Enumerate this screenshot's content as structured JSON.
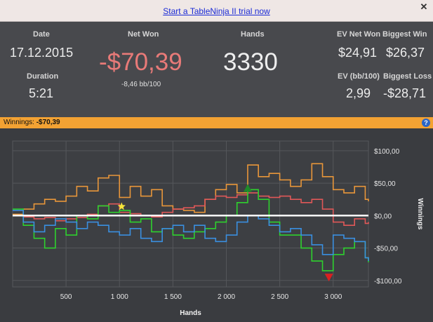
{
  "topbar": {
    "trial_link": "Start a TableNinja II trial now"
  },
  "stats": {
    "date_label": "Date",
    "date_value": "17.12.2015",
    "duration_label": "Duration",
    "duration_value": "5:21",
    "netwon_label": "Net Won",
    "netwon_value": "-$70,39",
    "netwon_sub": "-8,46 bb/100",
    "hands_label": "Hands",
    "hands_value": "3330",
    "evnet_label": "EV Net Won",
    "evnet_value": "$24,91",
    "biggestwin_label": "Biggest Win",
    "biggestwin_value": "$26,37",
    "evbb_label": "EV (bb/100)",
    "evbb_value": "2,99",
    "biggestloss_label": "Biggest Loss",
    "biggestloss_value": "-$28,71"
  },
  "winnings_bar": {
    "label": "Winnings:",
    "value": "-$70,39"
  },
  "chart_data": {
    "type": "line",
    "xlabel": "Hands",
    "ylabel": "Winnings",
    "xlim": [
      0,
      3330
    ],
    "ylim": [
      -110,
      115
    ],
    "x_ticks": [
      500,
      1000,
      1500,
      2000,
      2500,
      3000
    ],
    "x_tick_labels": [
      "500",
      "1 000",
      "1 500",
      "2 000",
      "2 500",
      "3 000"
    ],
    "y_ticks": [
      100,
      50,
      0,
      -50,
      -100
    ],
    "y_tick_labels": [
      "$100,00",
      "$50,00",
      "$0,00",
      "-$50,00",
      "-$100,00"
    ],
    "grid": true,
    "colors": {
      "orange": "#e8963a",
      "red": "#e05858",
      "green": "#2ed12e",
      "blue": "#3a8fe0",
      "zero": "#ffffff"
    },
    "series": [
      {
        "color": "orange",
        "x": [
          0,
          100,
          200,
          300,
          400,
          500,
          600,
          700,
          800,
          900,
          1000,
          1100,
          1200,
          1300,
          1400,
          1500,
          1600,
          1700,
          1800,
          1900,
          2000,
          2100,
          2200,
          2300,
          2400,
          2500,
          2600,
          2700,
          2800,
          2900,
          3000,
          3100,
          3200,
          3300,
          3330
        ],
        "y": [
          2,
          10,
          18,
          25,
          22,
          30,
          45,
          38,
          58,
          62,
          28,
          45,
          30,
          40,
          15,
          10,
          8,
          5,
          25,
          40,
          48,
          35,
          78,
          60,
          65,
          55,
          45,
          55,
          80,
          60,
          40,
          35,
          45,
          25,
          22
        ]
      },
      {
        "color": "red",
        "x": [
          0,
          100,
          200,
          300,
          400,
          500,
          600,
          700,
          800,
          900,
          1000,
          1100,
          1200,
          1300,
          1400,
          1500,
          1600,
          1700,
          1800,
          1900,
          2000,
          2100,
          2200,
          2300,
          2400,
          2500,
          2600,
          2700,
          2800,
          2900,
          3000,
          3100,
          3200,
          3300,
          3330
        ],
        "y": [
          0,
          -2,
          -5,
          -3,
          -8,
          -5,
          -3,
          2,
          15,
          18,
          5,
          3,
          0,
          -2,
          5,
          10,
          12,
          15,
          25,
          30,
          28,
          32,
          35,
          30,
          28,
          30,
          25,
          20,
          25,
          10,
          -10,
          -15,
          -5,
          -12,
          -10
        ]
      },
      {
        "color": "green",
        "x": [
          0,
          100,
          200,
          300,
          400,
          500,
          600,
          700,
          800,
          900,
          1000,
          1100,
          1200,
          1300,
          1400,
          1500,
          1600,
          1700,
          1800,
          1900,
          2000,
          2100,
          2200,
          2300,
          2400,
          2500,
          2600,
          2700,
          2800,
          2900,
          3000,
          3100,
          3200,
          3300,
          3330
        ],
        "y": [
          10,
          -15,
          -35,
          -50,
          -20,
          -30,
          0,
          -5,
          15,
          5,
          8,
          -10,
          -5,
          -25,
          -20,
          -30,
          -35,
          -25,
          -20,
          -10,
          0,
          20,
          40,
          25,
          -10,
          -30,
          -30,
          -50,
          -70,
          -85,
          -60,
          -50,
          -40,
          -65,
          -72
        ]
      },
      {
        "color": "blue",
        "x": [
          0,
          100,
          200,
          300,
          400,
          500,
          600,
          700,
          800,
          900,
          1000,
          1100,
          1200,
          1300,
          1400,
          1500,
          1600,
          1700,
          1800,
          1900,
          2000,
          2100,
          2200,
          2300,
          2400,
          2500,
          2600,
          2700,
          2800,
          2900,
          3000,
          3100,
          3200,
          3300,
          3330
        ],
        "y": [
          8,
          -10,
          -25,
          -15,
          -5,
          -10,
          -20,
          -10,
          -15,
          -25,
          -30,
          -20,
          -35,
          -40,
          -20,
          -15,
          -25,
          -15,
          -35,
          -40,
          -30,
          -10,
          0,
          -5,
          -15,
          -25,
          -20,
          -30,
          -45,
          -60,
          -30,
          -35,
          -40,
          -65,
          -70
        ]
      }
    ],
    "markers": [
      {
        "type": "star",
        "color": "#f5e53a",
        "x": 1020,
        "y": 14
      },
      {
        "type": "triangle-up",
        "color": "#1f8a2a",
        "x": 2200,
        "y": 42
      },
      {
        "type": "triangle-down",
        "color": "#d82020",
        "x": 2960,
        "y": -95
      }
    ]
  }
}
